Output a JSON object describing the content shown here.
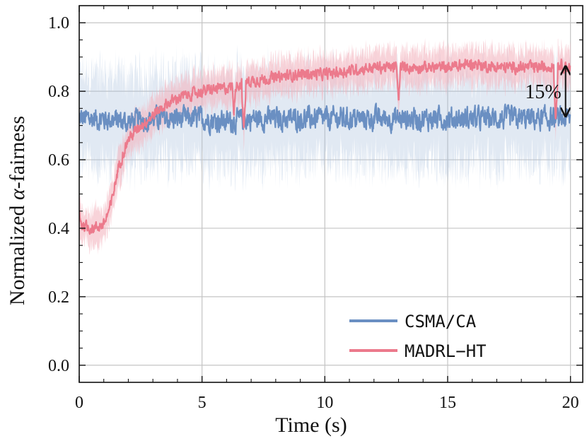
{
  "chart_data": {
    "type": "line",
    "title": "",
    "xlabel": "Time (s)",
    "ylabel_prefix": "Normalized ",
    "ylabel_symbol": "α",
    "ylabel_suffix": "-fairness",
    "xlim": [
      0,
      20.5
    ],
    "ylim": [
      -0.05,
      1.05
    ],
    "xticks": [
      0,
      5,
      10,
      15,
      20
    ],
    "xtick_labels": [
      "0",
      "5",
      "10",
      "15",
      "20"
    ],
    "yticks": [
      0.0,
      0.2,
      0.4,
      0.6,
      0.8,
      1.0
    ],
    "ytick_labels": [
      "0.0",
      "0.2",
      "0.4",
      "0.6",
      "0.8",
      "1.0"
    ],
    "grid": true,
    "legend_position": "bottom-right",
    "series": [
      {
        "name": "CSMA/CA",
        "color": "#6a8fc2",
        "band_color": "#a9c0dc",
        "x": [
          0,
          1,
          2,
          3,
          4,
          5,
          6,
          7,
          8,
          9,
          10,
          11,
          12,
          13,
          14,
          15,
          16,
          17,
          18,
          19,
          20
        ],
        "values": [
          0.72,
          0.72,
          0.71,
          0.72,
          0.72,
          0.72,
          0.71,
          0.72,
          0.72,
          0.72,
          0.72,
          0.72,
          0.72,
          0.72,
          0.72,
          0.72,
          0.72,
          0.72,
          0.72,
          0.72,
          0.72
        ],
        "noise": 0.05,
        "band_halfwidth": 0.13
      },
      {
        "name": "MADRL−HT",
        "color": "#ec7a8c",
        "band_color": "#f4b6c0",
        "x": [
          0,
          0.1,
          0.5,
          1.0,
          1.3,
          1.6,
          2.0,
          2.5,
          3.0,
          3.5,
          4.0,
          5.0,
          6.0,
          7.0,
          8.0,
          9.0,
          10.0,
          11.0,
          12.0,
          13.0,
          14.0,
          15.0,
          16.0,
          17.0,
          18.0,
          19.0,
          19.5,
          20.0
        ],
        "values": [
          0.45,
          0.41,
          0.4,
          0.41,
          0.47,
          0.58,
          0.66,
          0.7,
          0.73,
          0.76,
          0.78,
          0.8,
          0.81,
          0.83,
          0.84,
          0.85,
          0.85,
          0.86,
          0.87,
          0.87,
          0.87,
          0.87,
          0.88,
          0.87,
          0.87,
          0.87,
          0.88,
          0.87
        ],
        "noise": 0.025,
        "band_halfwidth": 0.05
      }
    ],
    "dips": [
      {
        "series": "MADRL−HT",
        "x": 6.3,
        "value": 0.73
      },
      {
        "series": "MADRL−HT",
        "x": 6.7,
        "value": 0.68
      },
      {
        "series": "MADRL−HT",
        "x": 13.0,
        "value": 0.76
      },
      {
        "series": "MADRL−HT",
        "x": 19.4,
        "value": 0.72
      }
    ],
    "annotation": {
      "text": "15%",
      "x": 19.8,
      "y_from": 0.73,
      "y_to": 0.87
    }
  }
}
